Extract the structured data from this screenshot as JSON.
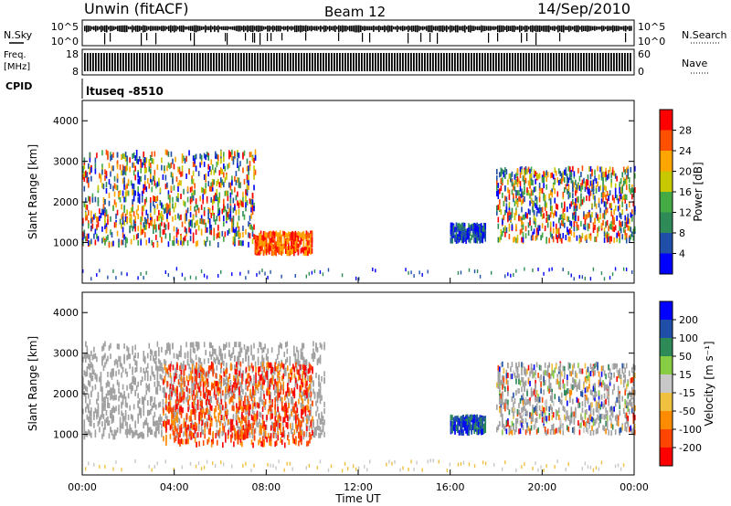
{
  "header": {
    "station": "Unwin (fitACF)",
    "beam": "Beam 12",
    "date": "14/Sep/2010"
  },
  "noise_panel": {
    "left_label": "N.Sky",
    "right_label": "N.Search",
    "left_ticks": [
      "10^5",
      "10^0"
    ],
    "right_ticks": [
      "10^5",
      "10^0"
    ]
  },
  "freq_panel": {
    "left_label_1": "Freq.",
    "left_label_2": "[MHz]",
    "right_label": "Nave",
    "left_ticks": [
      "18",
      "8"
    ],
    "right_ticks": [
      "60",
      "0"
    ]
  },
  "cpid": {
    "label": "CPID",
    "value": "ltuseq -8510"
  },
  "colors": {
    "power_scale": [
      "#0000ff",
      "#1f4fa8",
      "#2e8b57",
      "#44aa44",
      "#c8c800",
      "#ffa500",
      "#ff5000",
      "#ff0000"
    ],
    "velocity_scale": [
      "#ff0000",
      "#ff4500",
      "#ff8c00",
      "#f0c040",
      "#c8c8c8",
      "#88cc44",
      "#2e8b57",
      "#1f4fa8",
      "#0000ff"
    ],
    "ground_scatter": "#a0a0a0"
  },
  "chart_data": [
    {
      "type": "heatmap",
      "name": "power",
      "ylabel": "Slant Range [km]",
      "ylim": [
        0,
        4500
      ],
      "yticks": [
        "1000",
        "2000",
        "3000",
        "4000"
      ],
      "colorbar_label": "Power [dB]",
      "colorbar_ticks": [
        "4",
        "8",
        "12",
        "16",
        "20",
        "24",
        "28"
      ],
      "regions": [
        {
          "t_start": 0.0,
          "t_end": 7.5,
          "r_min": 1000,
          "r_max": 3300,
          "value": "mixed"
        },
        {
          "t_start": 7.5,
          "t_end": 10.0,
          "r_min": 800,
          "r_max": 1300,
          "value": "high"
        },
        {
          "t_start": 16.0,
          "t_end": 17.5,
          "r_min": 1100,
          "r_max": 1500,
          "value": "low"
        },
        {
          "t_start": 18.0,
          "t_end": 24.0,
          "r_min": 1100,
          "r_max": 2900,
          "value": "mixed"
        }
      ]
    },
    {
      "type": "heatmap",
      "name": "velocity",
      "ylabel": "Slant Range [km]",
      "ylim": [
        0,
        4500
      ],
      "yticks": [
        "1000",
        "2000",
        "3000",
        "4000"
      ],
      "colorbar_label": "Velocity [m s⁻¹]",
      "colorbar_ticks": [
        "-200",
        "-100",
        "-50",
        "-15",
        "15",
        "50",
        "100",
        "200"
      ],
      "regions": [
        {
          "t_start": 0.0,
          "t_end": 10.5,
          "r_min": 1000,
          "r_max": 3300,
          "value": "ground"
        },
        {
          "t_start": 3.5,
          "t_end": 10.0,
          "r_min": 800,
          "r_max": 2800,
          "value": "negative"
        },
        {
          "t_start": 16.0,
          "t_end": 17.5,
          "r_min": 1100,
          "r_max": 1500,
          "value": "positive"
        },
        {
          "t_start": 18.0,
          "t_end": 24.0,
          "r_min": 1100,
          "r_max": 2800,
          "value": "mixed"
        }
      ]
    }
  ],
  "x_axis": {
    "label": "Time UT",
    "ticks": [
      "00:00",
      "04:00",
      "08:00",
      "12:00",
      "16:00",
      "20:00",
      "00:00"
    ]
  }
}
